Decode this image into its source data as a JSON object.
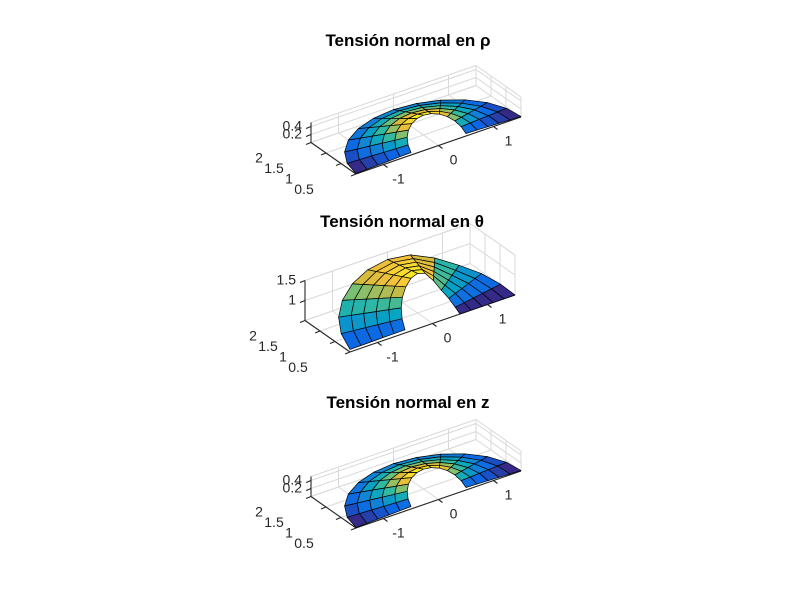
{
  "figure": {
    "background": "#ffffff",
    "axis_color": "#262626",
    "grid_color": "#d9d9d9",
    "mesh_edge_color": "#000000",
    "title_color": "#000000"
  },
  "colormap": {
    "name": "parula",
    "stops": [
      [
        0.0,
        "#352a87"
      ],
      [
        0.12,
        "#0b63e5"
      ],
      [
        0.25,
        "#1181d8"
      ],
      [
        0.37,
        "#08a4c2"
      ],
      [
        0.5,
        "#2cb7a4"
      ],
      [
        0.62,
        "#7bbf73"
      ],
      [
        0.75,
        "#d5bb3c"
      ],
      [
        0.85,
        "#f2c13a"
      ],
      [
        0.93,
        "#f9d930"
      ],
      [
        1.0,
        "#f9e921"
      ]
    ]
  },
  "chart_data": [
    {
      "type": "surface",
      "title": "Tensión normal en ρ",
      "surface_kind": "flat-annulus",
      "axis": {
        "x_range": [
          -1.5,
          1.5
        ],
        "x_ticks": [
          -1,
          0,
          1
        ],
        "y_range": [
          0.5,
          2
        ],
        "y_ticks": [
          0.5,
          1,
          1.5,
          2
        ],
        "z_range": [
          0,
          0.5
        ],
        "z_ticks": [
          0.2,
          0.4
        ]
      },
      "mesh": {
        "n_theta": 12,
        "n_rho": 5,
        "rho_range": [
          0.5,
          1.5
        ],
        "theta_deg_range": [
          0,
          180
        ]
      },
      "angular_profile": [
        0.235,
        0.457,
        0.656,
        0.818,
        0.933,
        0.992,
        0.992,
        0.933,
        0.818,
        0.656,
        0.457,
        0.235
      ],
      "radial_profile": [
        0.922,
        0.766,
        0.61,
        0.454,
        0.298
      ],
      "z_base": 0,
      "z_scale": 0.5
    },
    {
      "type": "surface",
      "title": "Tensión normal en θ",
      "surface_kind": "arch",
      "axis": {
        "x_range": [
          -1.5,
          1.5
        ],
        "x_ticks": [
          -1,
          0,
          1
        ],
        "y_range": [
          0.5,
          2
        ],
        "y_ticks": [
          0.5,
          1,
          1.5,
          2
        ],
        "z_range": [
          0.5,
          1.5
        ],
        "z_ticks": [
          1,
          1.5
        ]
      },
      "mesh": {
        "n_theta": 12,
        "n_rho": 5,
        "rho_range": [
          0.5,
          1.5
        ],
        "theta_deg_range": [
          0,
          180
        ]
      },
      "angular_profile": [
        0.18,
        0.38,
        0.55,
        0.73,
        0.89,
        0.98,
        1.0,
        0.88,
        0.58,
        0.38,
        0.2,
        0.02
      ],
      "radial_profile": [
        0.982,
        0.946,
        0.91,
        0.874,
        0.838
      ],
      "z_base": 0.5,
      "z_scale": 1.0
    },
    {
      "type": "surface",
      "title": "Tensión normal en z",
      "surface_kind": "flat-annulus",
      "axis": {
        "x_range": [
          -1.5,
          1.5
        ],
        "x_ticks": [
          -1,
          0,
          1
        ],
        "y_range": [
          0.5,
          2
        ],
        "y_ticks": [
          0.5,
          1,
          1.5,
          2
        ],
        "z_range": [
          0,
          0.5
        ],
        "z_ticks": [
          0.2,
          0.4
        ]
      },
      "mesh": {
        "n_theta": 12,
        "n_rho": 5,
        "rho_range": [
          0.5,
          1.5
        ],
        "theta_deg_range": [
          0,
          180
        ]
      },
      "angular_profile": [
        0.235,
        0.457,
        0.656,
        0.818,
        0.933,
        0.992,
        0.992,
        0.933,
        0.818,
        0.656,
        0.457,
        0.235
      ],
      "radial_profile": [
        0.922,
        0.766,
        0.61,
        0.454,
        0.298
      ],
      "z_base": 0,
      "z_scale": 0.5
    }
  ]
}
